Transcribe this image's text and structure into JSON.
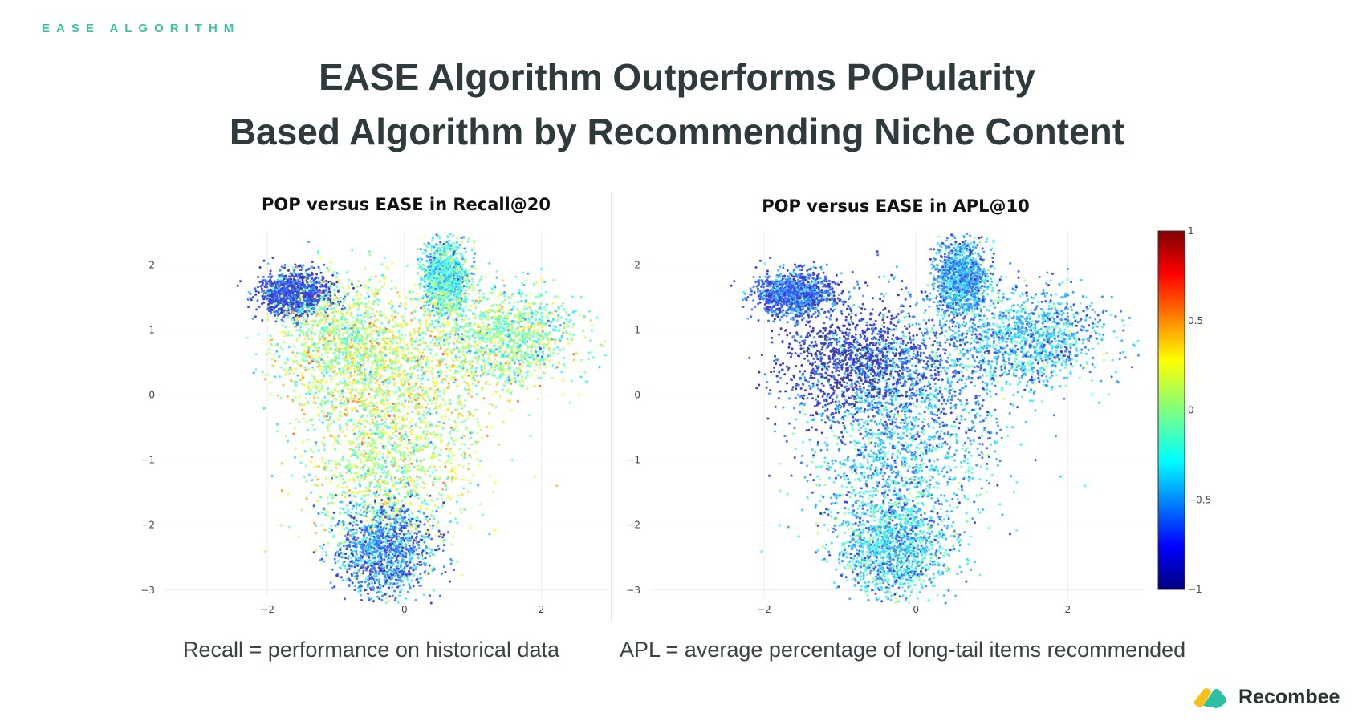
{
  "header": {
    "section_label": "EASE ALGORITHM",
    "title_line1": "EASE Algorithm Outperforms POPularity",
    "title_line2": "Based Algorithm by Recommending Niche Content"
  },
  "chart_data": [
    {
      "type": "scatter",
      "title": "POP versus EASE in Recall@20",
      "xlabel": "",
      "ylabel": "",
      "xlim": [
        -3.5,
        3.0
      ],
      "ylim": [
        -3.2,
        2.5
      ],
      "xticks": [
        -2,
        0,
        2
      ],
      "yticks": [
        2,
        1,
        0,
        -1,
        -2,
        -3
      ],
      "grid": true,
      "colorscale": "jet",
      "point_count_approx": 8000,
      "clusters": [
        {
          "cx": -1.6,
          "cy": 1.55,
          "sx": 0.18,
          "sy": 0.12,
          "value": -0.75
        },
        {
          "cx": -0.9,
          "cy": 0.8,
          "sx": 0.35,
          "sy": 0.35,
          "value": 0.05
        },
        {
          "cx": 0.6,
          "cy": 1.8,
          "sx": 0.12,
          "sy": 0.2,
          "value": -0.2
        },
        {
          "cx": 1.5,
          "cy": 0.9,
          "sx": 0.35,
          "sy": 0.25,
          "value": -0.05
        },
        {
          "cx": 0.0,
          "cy": 0.2,
          "sx": 0.5,
          "sy": 0.5,
          "value": 0.15
        },
        {
          "cx": -0.3,
          "cy": -1.2,
          "sx": 0.4,
          "sy": 0.5,
          "value": 0.05
        },
        {
          "cx": -0.3,
          "cy": -2.4,
          "sx": 0.25,
          "sy": 0.25,
          "value": -0.55
        }
      ]
    },
    {
      "type": "scatter",
      "title": "POP versus EASE in APL@10",
      "xlabel": "",
      "ylabel": "",
      "xlim": [
        -3.5,
        3.0
      ],
      "ylim": [
        -3.2,
        2.5
      ],
      "xticks": [
        -2,
        0,
        2
      ],
      "yticks": [
        2,
        1,
        0,
        -1,
        -2,
        -3
      ],
      "grid": true,
      "colorscale": "jet",
      "point_count_approx": 8000,
      "clusters": [
        {
          "cx": -1.6,
          "cy": 1.55,
          "sx": 0.18,
          "sy": 0.12,
          "value": -0.65
        },
        {
          "cx": -0.8,
          "cy": 0.5,
          "sx": 0.35,
          "sy": 0.3,
          "value": -0.9
        },
        {
          "cx": 0.6,
          "cy": 1.8,
          "sx": 0.12,
          "sy": 0.2,
          "value": -0.45
        },
        {
          "cx": 1.5,
          "cy": 0.9,
          "sx": 0.35,
          "sy": 0.25,
          "value": -0.4
        },
        {
          "cx": 0.0,
          "cy": 0.2,
          "sx": 0.5,
          "sy": 0.5,
          "value": -0.5
        },
        {
          "cx": -0.3,
          "cy": -1.2,
          "sx": 0.4,
          "sy": 0.5,
          "value": -0.35
        },
        {
          "cx": -0.3,
          "cy": -2.4,
          "sx": 0.25,
          "sy": 0.25,
          "value": -0.35
        }
      ],
      "colorbar": {
        "range": [
          -1,
          1
        ],
        "ticks": [
          "1",
          "0.5",
          "0",
          "−0.5",
          "−1"
        ]
      }
    }
  ],
  "tick_labels": {
    "y": [
      "2",
      "1",
      "0",
      "−1",
      "−2",
      "−3"
    ],
    "x": [
      "−2",
      "0",
      "2"
    ]
  },
  "captions": {
    "left": "Recall = performance on historical data",
    "right": "APL = average percentage of long-tail items recommended"
  },
  "brand": {
    "name": "Recombee",
    "colors": [
      "#f6c21a",
      "#2dbfa2"
    ]
  }
}
